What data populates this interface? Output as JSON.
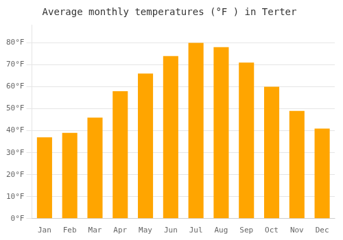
{
  "chart_data": {
    "type": "bar",
    "title": "Average monthly temperatures (°F ) in Terter",
    "categories": [
      "Jan",
      "Feb",
      "Mar",
      "Apr",
      "May",
      "Jun",
      "Jul",
      "Aug",
      "Sep",
      "Oct",
      "Nov",
      "Dec"
    ],
    "values": [
      37,
      39,
      46,
      58,
      66,
      74,
      80,
      78,
      71,
      60,
      49,
      41
    ],
    "color": "#FFA500",
    "ylim": [
      0,
      88
    ],
    "yticks": [
      {
        "value": 0,
        "label": "0°F"
      },
      {
        "value": 10,
        "label": "10°F"
      },
      {
        "value": 20,
        "label": "20°F"
      },
      {
        "value": 30,
        "label": "30°F"
      },
      {
        "value": 40,
        "label": "40°F"
      },
      {
        "value": 50,
        "label": "50°F"
      },
      {
        "value": 60,
        "label": "60°F"
      },
      {
        "value": 70,
        "label": "70°F"
      },
      {
        "value": 80,
        "label": "80°F"
      }
    ],
    "grid": true
  }
}
